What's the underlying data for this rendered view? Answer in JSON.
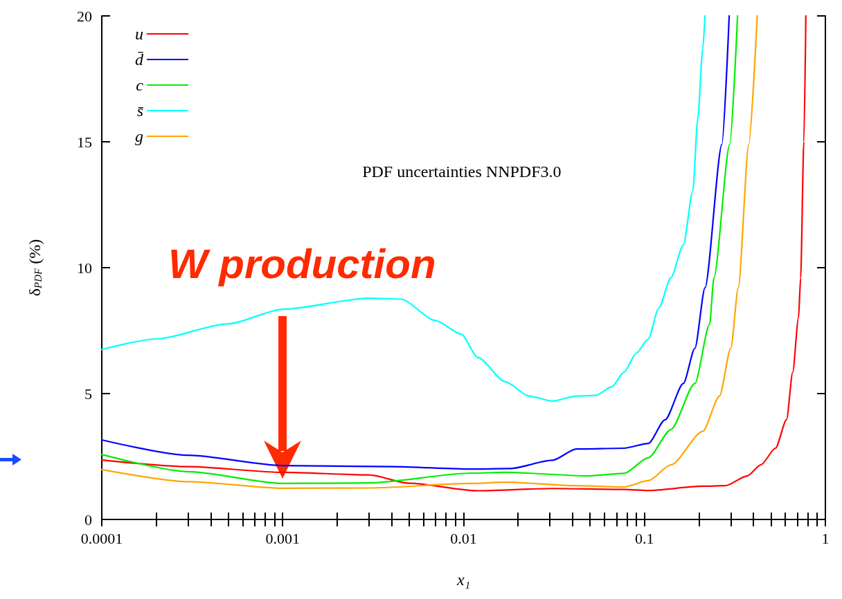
{
  "chart_data": {
    "type": "line",
    "xlabel": "x₁",
    "ylabel": "δ$_{PDF}$ (%)",
    "log": "x",
    "xlim": [
      0.0001,
      1
    ],
    "ylim": [
      0,
      20
    ],
    "xticks": [
      0.0001,
      {
        "value": 0.0002,
        "label": null
      },
      {
        "value": 0.0003,
        "label": null
      },
      {
        "value": 0.0004,
        "label": null
      },
      {
        "value": 0.0005,
        "label": null
      },
      {
        "value": 0.0006,
        "label": null
      },
      {
        "value": 0.0007,
        "label": null
      },
      {
        "value": 0.0008,
        "label": null
      },
      {
        "value": 0.0009,
        "label": null
      },
      0.001,
      {
        "value": 0.002,
        "label": null
      },
      {
        "value": 0.003,
        "label": null
      },
      {
        "value": 0.004,
        "label": null
      },
      {
        "value": 0.005,
        "label": null
      },
      {
        "value": 0.006,
        "label": null
      },
      {
        "value": 0.007,
        "label": null
      },
      {
        "value": 0.008,
        "label": null
      },
      {
        "value": 0.009,
        "label": null
      },
      0.01,
      {
        "value": 0.02,
        "label": null
      },
      {
        "value": 0.03,
        "label": null
      },
      {
        "value": 0.04,
        "label": null
      },
      {
        "value": 0.05,
        "label": null
      },
      {
        "value": 0.06,
        "label": null
      },
      {
        "value": 0.07,
        "label": null
      },
      {
        "value": 0.08,
        "label": null
      },
      {
        "value": 0.09,
        "label": null
      },
      0.1,
      {
        "value": 0.2,
        "label": null
      },
      {
        "value": 0.3,
        "label": null
      },
      {
        "value": 0.4,
        "label": null
      },
      {
        "value": 0.5,
        "label": null
      },
      {
        "value": 0.6,
        "label": null
      },
      {
        "value": 0.7,
        "label": null
      },
      {
        "value": 0.8,
        "label": null
      },
      {
        "value": 0.9,
        "label": null
      },
      1
    ],
    "yticks": [
      0,
      5,
      10,
      15,
      20
    ],
    "grid": false,
    "legend": "top left",
    "marker": "none",
    "line_style": "solid",
    "series": [
      {
        "name": "u",
        "color": "#ff0000",
        "x": [
          0.0001,
          0.0003,
          0.001,
          0.003,
          0.005,
          0.012,
          0.031,
          0.077,
          0.104,
          0.21,
          0.28,
          0.37,
          0.44,
          0.53,
          0.61,
          0.66,
          0.71,
          0.73,
          0.76,
          0.78
        ],
        "values": [
          2.36,
          2.1,
          1.87,
          1.77,
          1.44,
          1.14,
          1.23,
          1.19,
          1.15,
          1.32,
          1.34,
          1.73,
          2.17,
          2.83,
          3.96,
          5.85,
          8.0,
          9.6,
          15,
          20
        ]
      },
      {
        "name": "d̄",
        "color": "#0000ff",
        "x": [
          0.0001,
          0.0003,
          0.001,
          0.004,
          0.011,
          0.018,
          0.031,
          0.042,
          0.077,
          0.105,
          0.13,
          0.164,
          0.19,
          0.216,
          0.268,
          0.294
        ],
        "values": [
          3.16,
          2.55,
          2.14,
          2.1,
          2.0,
          2.02,
          2.35,
          2.8,
          2.83,
          3.02,
          3.96,
          5.4,
          6.8,
          9.2,
          14.9,
          20
        ]
      },
      {
        "name": "c",
        "color": "#00ee00",
        "x": [
          0.0001,
          0.0003,
          0.001,
          0.003,
          0.011,
          0.017,
          0.049,
          0.077,
          0.105,
          0.14,
          0.19,
          0.229,
          0.242,
          0.296,
          0.327
        ],
        "values": [
          2.58,
          1.9,
          1.43,
          1.45,
          1.84,
          1.87,
          1.73,
          1.83,
          2.45,
          3.57,
          5.4,
          7.75,
          9.6,
          14.9,
          20
        ]
      },
      {
        "name": "s̄",
        "color": "#00ffff",
        "x": [
          0.0001,
          0.0002,
          0.0005,
          0.001,
          0.003,
          0.0045,
          0.007,
          0.0097,
          0.012,
          0.017,
          0.023,
          0.031,
          0.042,
          0.054,
          0.066,
          0.077,
          0.09,
          0.105,
          0.12,
          0.14,
          0.164,
          0.185,
          0.197,
          0.21,
          0.216
        ],
        "values": [
          6.75,
          7.17,
          7.77,
          8.35,
          8.79,
          8.75,
          7.9,
          7.36,
          6.43,
          5.47,
          4.9,
          4.7,
          4.9,
          4.93,
          5.27,
          5.85,
          6.6,
          7.17,
          8.4,
          9.6,
          10.9,
          13.05,
          15.9,
          18.7,
          20
        ]
      },
      {
        "name": "g",
        "color": "#ffa500",
        "x": [
          0.0001,
          0.0003,
          0.001,
          0.003,
          0.011,
          0.017,
          0.042,
          0.077,
          0.105,
          0.14,
          0.21,
          0.26,
          0.3,
          0.33,
          0.377,
          0.42
        ],
        "values": [
          1.98,
          1.5,
          1.24,
          1.25,
          1.43,
          1.48,
          1.34,
          1.29,
          1.54,
          2.17,
          3.5,
          4.9,
          6.8,
          9.2,
          14.9,
          20
        ]
      }
    ],
    "annotations": [
      "PDF uncertainties NNPDF3.0",
      "W production"
    ]
  }
}
